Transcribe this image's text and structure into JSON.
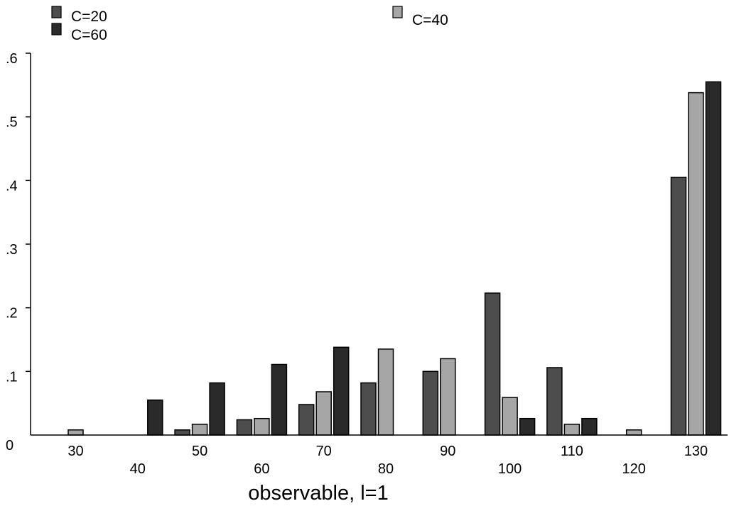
{
  "chart_data": {
    "type": "bar",
    "title": "",
    "xlabel": "observable, l=1",
    "ylabel": "",
    "categories": [
      "30",
      "40",
      "50",
      "60",
      "70",
      "80",
      "90",
      "100",
      "110",
      "120",
      "130"
    ],
    "series": [
      {
        "name": "C=20",
        "color": "#4d4d4d",
        "values": [
          0,
          0,
          0.008,
          0.024,
          0.048,
          0.082,
          0.1,
          0.223,
          0.106,
          0,
          0.405
        ]
      },
      {
        "name": "C=40",
        "color": "#a6a6a6",
        "values": [
          0.008,
          0,
          0.017,
          0.026,
          0.068,
          0.135,
          0.12,
          0.059,
          0.017,
          0.008,
          0.538
        ]
      },
      {
        "name": "C=60",
        "color": "#2a2a2a",
        "values": [
          0,
          0.055,
          0.082,
          0.111,
          0.138,
          0,
          0,
          0.026,
          0.026,
          0,
          0.555
        ]
      }
    ],
    "ylim": [
      0,
      0.6
    ],
    "yticks": [
      {
        "value": 0,
        "label": "0"
      },
      {
        "value": 0.1,
        "label": ".1"
      },
      {
        "value": 0.2,
        "label": ".2"
      },
      {
        "value": 0.3,
        "label": ".3"
      },
      {
        "value": 0.4,
        "label": ".4"
      },
      {
        "value": 0.5,
        "label": ".5"
      },
      {
        "value": 0.6,
        "label": ".6"
      }
    ],
    "grid": false,
    "legend": {
      "placement": "top",
      "entries": [
        "C=20",
        "C=40",
        "C=60"
      ]
    }
  }
}
